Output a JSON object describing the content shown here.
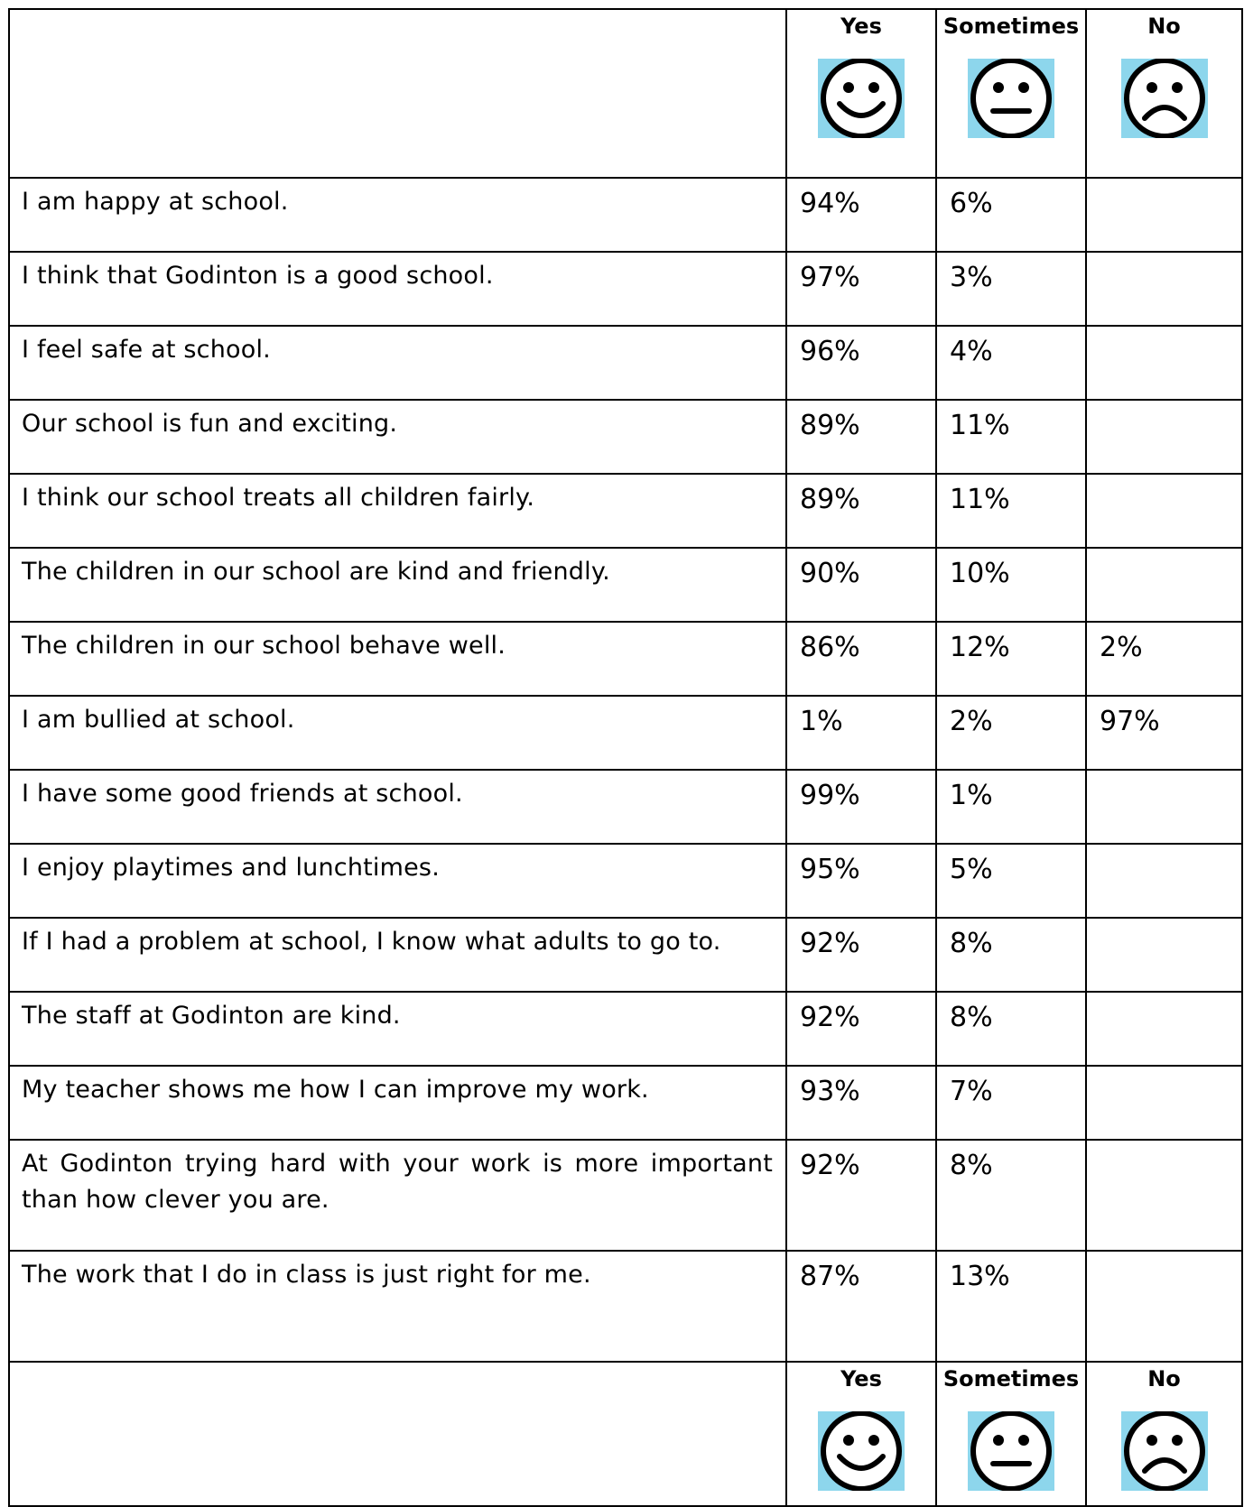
{
  "header": {
    "yes_label": "Yes",
    "sometimes_label": "Sometimes",
    "no_label": "No",
    "icons": {
      "yes": "smiley-face-icon",
      "sometimes": "neutral-face-icon",
      "no": "sad-face-icon"
    },
    "icon_background": "#8dd6ec"
  },
  "rows": [
    {
      "statement": "I am happy at school.",
      "yes": "94%",
      "sometimes": "6%",
      "no": ""
    },
    {
      "statement": "I think that Godinton is a good school.",
      "yes": "97%",
      "sometimes": "3%",
      "no": ""
    },
    {
      "statement": "I feel safe at school.",
      "yes": "96%",
      "sometimes": "4%",
      "no": ""
    },
    {
      "statement": "Our school is fun and exciting.",
      "yes": "89%",
      "sometimes": "11%",
      "no": ""
    },
    {
      "statement": "I think our school treats all children fairly.",
      "yes": "89%",
      "sometimes": "11%",
      "no": ""
    },
    {
      "statement": "The children in our school are kind and friendly.",
      "yes": "90%",
      "sometimes": "10%",
      "no": ""
    },
    {
      "statement": "The children in our school behave well.",
      "yes": "86%",
      "sometimes": "12%",
      "no": "2%"
    },
    {
      "statement": "I am bullied at school.",
      "yes": "1%",
      "sometimes": "2%",
      "no": "97%"
    },
    {
      "statement": "I have some good friends at school.",
      "yes": "99%",
      "sometimes": "1%",
      "no": ""
    },
    {
      "statement": "I enjoy playtimes and lunchtimes.",
      "yes": "95%",
      "sometimes": "5%",
      "no": ""
    },
    {
      "statement": "If I had a problem at school, I know what adults to go to.",
      "yes": "92%",
      "sometimes": "8%",
      "no": ""
    },
    {
      "statement": "The staff at Godinton are kind.",
      "yes": "92%",
      "sometimes": "8%",
      "no": ""
    },
    {
      "statement": "My teacher shows me how I can improve my work.",
      "yes": "93%",
      "sometimes": "7%",
      "no": ""
    },
    {
      "statement": "At Godinton trying hard with your work is more important than how clever you are.",
      "yes": "92%",
      "sometimes": "8%",
      "no": ""
    },
    {
      "statement": "The work that I do in class is just right for me.",
      "yes": "87%",
      "sometimes": "13%",
      "no": ""
    }
  ]
}
